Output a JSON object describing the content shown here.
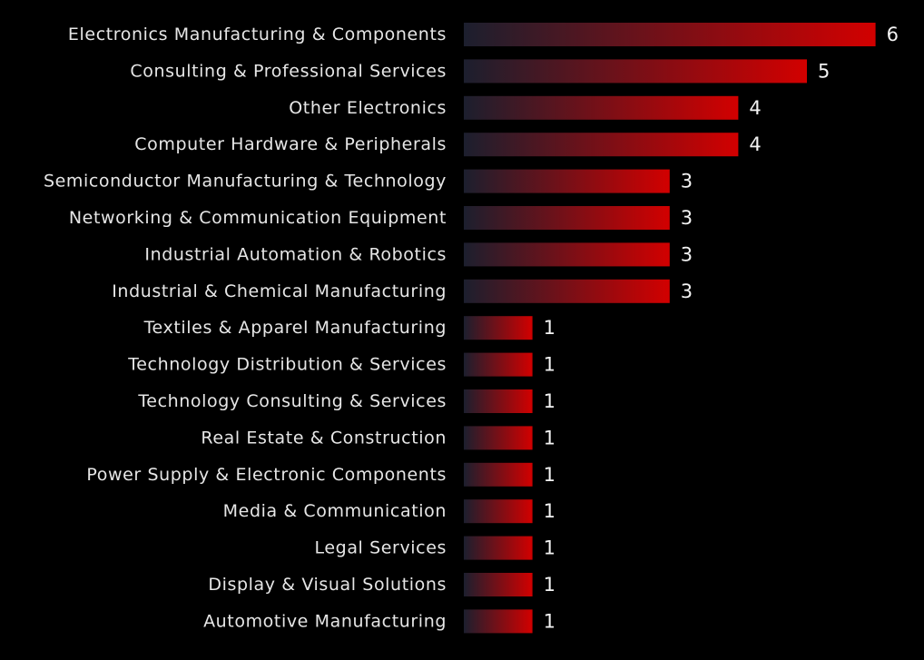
{
  "chart_data": {
    "type": "bar",
    "orientation": "horizontal",
    "categories": [
      "Electronics Manufacturing & Components",
      "Consulting & Professional Services",
      "Other Electronics",
      "Computer Hardware & Peripherals",
      "Semiconductor Manufacturing & Technology",
      "Networking & Communication Equipment",
      "Industrial Automation & Robotics",
      "Industrial & Chemical Manufacturing",
      "Textiles & Apparel Manufacturing",
      "Technology Distribution & Services",
      "Technology Consulting & Services",
      "Real Estate & Construction",
      "Power Supply & Electronic Components",
      "Media & Communication",
      "Legal Services",
      "Display & Visual Solutions",
      "Automotive Manufacturing"
    ],
    "values": [
      6,
      5,
      4,
      4,
      3,
      3,
      3,
      3,
      1,
      1,
      1,
      1,
      1,
      1,
      1,
      1,
      1
    ],
    "title": "",
    "xlabel": "",
    "ylabel": "",
    "xlim": [
      0,
      6
    ],
    "grid": false,
    "legend": "none",
    "data_labels": true,
    "colors": {
      "background": "#000000",
      "bar_start": "#1c1f2e",
      "bar_end": "#d20000",
      "label_text": "#e6e6e6",
      "value_text": "#f2f2f2"
    }
  }
}
